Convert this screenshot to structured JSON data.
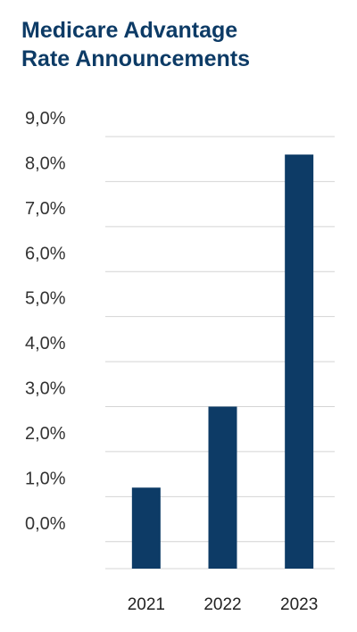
{
  "chart_data": {
    "type": "bar",
    "title_lines": [
      "Medicare Advantage",
      "Rate Announcements"
    ],
    "categories": [
      "2021",
      "2022",
      "2023"
    ],
    "values": [
      1.2,
      3.0,
      8.6
    ],
    "ylim": [
      -0.6,
      9.0
    ],
    "yticks": [
      {
        "value": 9.0,
        "label": "9,0%"
      },
      {
        "value": 8.0,
        "label": "8,0%"
      },
      {
        "value": 7.0,
        "label": "7,0%"
      },
      {
        "value": 6.0,
        "label": "6,0%"
      },
      {
        "value": 5.0,
        "label": "5,0%"
      },
      {
        "value": 4.0,
        "label": "4,0%"
      },
      {
        "value": 3.0,
        "label": "3,0%"
      },
      {
        "value": 2.0,
        "label": "2,0%"
      },
      {
        "value": 1.0,
        "label": "1,0%"
      },
      {
        "value": 0.0,
        "label": "0,0%"
      }
    ],
    "grid": true,
    "bar_color": "#0d3b66",
    "grid_color": "#d4d4d4"
  }
}
